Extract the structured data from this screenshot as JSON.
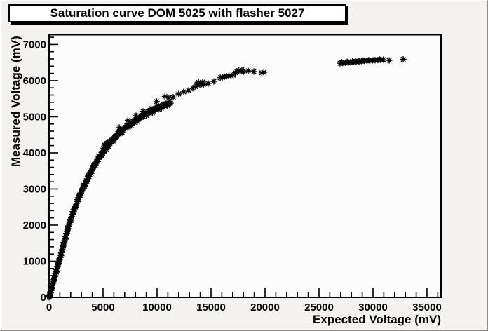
{
  "title_pave": {
    "text": "Saturation curve DOM 5025 with flasher 5027"
  },
  "colors": {
    "canvas_bg": "#f3f2f1",
    "plot_bg": "#fdfcfc",
    "frame": "#000000",
    "marker": "#000000",
    "text": "#000000"
  },
  "chart_data": {
    "type": "scatter",
    "title": "Saturation curve DOM 5025 with flasher 5027",
    "xlabel": "Expected Voltage (mV)",
    "ylabel": "Measured Voltage (mV)",
    "xlim": [
      0,
      36300
    ],
    "ylim": [
      0,
      7270
    ],
    "x_major_ticks": [
      0,
      5000,
      10000,
      15000,
      20000,
      25000,
      30000,
      35000
    ],
    "y_major_ticks": [
      0,
      1000,
      2000,
      3000,
      4000,
      5000,
      6000,
      7000
    ],
    "x_minor_step": 1000,
    "y_minor_step": 200,
    "grid": false,
    "legend": null,
    "marker": "asterisk",
    "points": [
      [
        5,
        6
      ],
      [
        15,
        18
      ],
      [
        30,
        33
      ],
      [
        45,
        55
      ],
      [
        60,
        70
      ],
      [
        90,
        148
      ],
      [
        120,
        140
      ],
      [
        150,
        124
      ],
      [
        180,
        196
      ],
      [
        210,
        254
      ],
      [
        240,
        262
      ],
      [
        270,
        239
      ],
      [
        300,
        327
      ],
      [
        330,
        400
      ],
      [
        360,
        392
      ],
      [
        390,
        400
      ],
      [
        420,
        458
      ],
      [
        450,
        491
      ],
      [
        480,
        523
      ],
      [
        510,
        606
      ],
      [
        540,
        588
      ],
      [
        570,
        581
      ],
      [
        600,
        654
      ],
      [
        630,
        712
      ],
      [
        660,
        719
      ],
      [
        690,
        697
      ],
      [
        720,
        785
      ],
      [
        750,
        858
      ],
      [
        780,
        850
      ],
      [
        810,
        858
      ],
      [
        840,
        915
      ],
      [
        870,
        948
      ],
      [
        900,
        981
      ],
      [
        930,
        1064
      ],
      [
        960,
        1046
      ],
      [
        990,
        1039
      ],
      [
        1020,
        1112
      ],
      [
        1050,
        1170
      ],
      [
        1080,
        1177
      ],
      [
        1110,
        1155
      ],
      [
        1140,
        1243
      ],
      [
        1170,
        1315
      ],
      [
        1200,
        1308
      ],
      [
        1230,
        1316
      ],
      [
        1260,
        1373
      ],
      [
        1290,
        1406
      ],
      [
        1320,
        1439
      ],
      [
        1350,
        1522
      ],
      [
        1380,
        1504
      ],
      [
        1410,
        1497
      ],
      [
        1440,
        1570
      ],
      [
        1470,
        1627
      ],
      [
        1500,
        1635
      ],
      [
        1530,
        1613
      ],
      [
        1560,
        1700
      ],
      [
        1590,
        1773
      ],
      [
        1620,
        1766
      ],
      [
        1650,
        1774
      ],
      [
        1680,
        1831
      ],
      [
        1710,
        1864
      ],
      [
        1740,
        1897
      ],
      [
        1770,
        1979
      ],
      [
        1800,
        1962
      ],
      [
        1830,
        1955
      ],
      [
        1860,
        2027
      ],
      [
        1890,
        2085
      ],
      [
        1920,
        2093
      ],
      [
        1950,
        2071
      ],
      [
        1980,
        2158
      ],
      [
        2040,
        2170
      ],
      [
        2100,
        2240
      ],
      [
        2200,
        2375
      ],
      [
        2300,
        2365
      ],
      [
        2400,
        2510
      ],
      [
        2500,
        2540
      ],
      [
        2600,
        2705
      ],
      [
        2700,
        2700
      ],
      [
        2800,
        2825
      ],
      [
        2900,
        2810
      ],
      [
        3000,
        2940
      ],
      [
        3100,
        3000
      ],
      [
        3200,
        3105
      ],
      [
        3300,
        3075
      ],
      [
        3400,
        3200
      ],
      [
        3500,
        3210
      ],
      [
        3600,
        3355
      ],
      [
        3700,
        3340
      ],
      [
        3800,
        3455
      ],
      [
        3900,
        3430
      ],
      [
        4000,
        3550
      ],
      [
        4100,
        3590
      ],
      [
        4200,
        3685
      ],
      [
        4300,
        3645
      ],
      [
        4400,
        3760
      ],
      [
        4500,
        3760
      ],
      [
        4600,
        3895
      ],
      [
        4700,
        3870
      ],
      [
        4800,
        3965
      ],
      [
        4900,
        3920
      ],
      [
        5000,
        4020
      ],
      [
        5100,
        4050
      ],
      [
        5200,
        4135
      ],
      [
        5300,
        4085
      ],
      [
        5400,
        4190
      ],
      [
        5500,
        4180
      ],
      [
        2150,
        2300
      ],
      [
        2250,
        2420
      ],
      [
        2350,
        2450
      ],
      [
        2450,
        2500
      ],
      [
        2550,
        2610
      ],
      [
        2650,
        2660
      ],
      [
        2750,
        2760
      ],
      [
        2850,
        2840
      ],
      [
        2950,
        2880
      ],
      [
        3050,
        2970
      ],
      [
        3150,
        3060
      ],
      [
        3250,
        3080
      ],
      [
        3350,
        3150
      ],
      [
        3450,
        3230
      ],
      [
        3550,
        3280
      ],
      [
        3650,
        3370
      ],
      [
        3750,
        3390
      ],
      [
        3850,
        3470
      ],
      [
        3950,
        3500
      ],
      [
        4050,
        3580
      ],
      [
        4150,
        3650
      ],
      [
        4250,
        3670
      ],
      [
        4350,
        3730
      ],
      [
        4450,
        3780
      ],
      [
        4550,
        3820
      ],
      [
        4650,
        3880
      ],
      [
        4750,
        3900
      ],
      [
        4850,
        3960
      ],
      [
        4950,
        3990
      ],
      [
        5050,
        4060
      ],
      [
        5150,
        4080
      ],
      [
        5250,
        4140
      ],
      [
        5350,
        4150
      ],
      [
        5450,
        4220
      ],
      [
        5050,
        4130
      ],
      [
        5150,
        4210
      ],
      [
        5250,
        4240
      ],
      [
        5350,
        4260
      ],
      [
        5450,
        4300
      ],
      [
        5550,
        4280
      ],
      [
        5650,
        4260
      ],
      [
        5790,
        4350
      ],
      [
        5930,
        4325
      ],
      [
        6070,
        4430
      ],
      [
        6210,
        4405
      ],
      [
        6350,
        4540
      ],
      [
        6490,
        4515
      ],
      [
        6630,
        4600
      ],
      [
        6770,
        4560
      ],
      [
        6910,
        4660
      ],
      [
        7050,
        4680
      ],
      [
        7190,
        4750
      ],
      [
        7330,
        4705
      ],
      [
        7470,
        4790
      ],
      [
        7610,
        4755
      ],
      [
        7750,
        4880
      ],
      [
        7890,
        4845
      ],
      [
        8030,
        4920
      ],
      [
        8170,
        4870
      ],
      [
        8310,
        4960
      ],
      [
        8450,
        4980
      ],
      [
        8590,
        5050
      ],
      [
        8730,
        5005
      ],
      [
        8870,
        5080
      ],
      [
        9010,
        5035
      ],
      [
        9150,
        5150
      ],
      [
        9290,
        5105
      ],
      [
        9430,
        5170
      ],
      [
        9570,
        5110
      ],
      [
        9710,
        5190
      ],
      [
        9850,
        5200
      ],
      [
        9990,
        5260
      ],
      [
        10130,
        5205
      ],
      [
        10270,
        5280
      ],
      [
        10410,
        5235
      ],
      [
        10550,
        5340
      ],
      [
        10690,
        5300
      ],
      [
        10830,
        5360
      ],
      [
        10970,
        5310
      ],
      [
        11110,
        5370
      ],
      [
        11250,
        5375
      ],
      [
        5720,
        4300
      ],
      [
        5860,
        4380
      ],
      [
        6000,
        4390
      ],
      [
        6140,
        4460
      ],
      [
        6280,
        4470
      ],
      [
        6420,
        4550
      ],
      [
        6560,
        4560
      ],
      [
        6700,
        4630
      ],
      [
        6840,
        4620
      ],
      [
        6980,
        4690
      ],
      [
        7120,
        4710
      ],
      [
        7260,
        4760
      ],
      [
        7400,
        4760
      ],
      [
        7540,
        4820
      ],
      [
        7680,
        4810
      ],
      [
        7820,
        4870
      ],
      [
        7960,
        4880
      ],
      [
        8100,
        4930
      ],
      [
        8240,
        4920
      ],
      [
        8380,
        4970
      ],
      [
        8520,
        5010
      ],
      [
        8660,
        5030
      ],
      [
        8800,
        5050
      ],
      [
        8940,
        5090
      ],
      [
        9080,
        5080
      ],
      [
        9220,
        5130
      ],
      [
        9360,
        5140
      ],
      [
        9500,
        5170
      ],
      [
        9640,
        5160
      ],
      [
        9780,
        5210
      ],
      [
        9920,
        5230
      ],
      [
        10060,
        5250
      ],
      [
        10200,
        5270
      ],
      [
        10340,
        5290
      ],
      [
        10480,
        5300
      ],
      [
        10620,
        5330
      ],
      [
        10760,
        5330
      ],
      [
        10900,
        5360
      ],
      [
        11040,
        5350
      ],
      [
        11180,
        5380
      ],
      [
        6500,
        4700
      ],
      [
        7300,
        4900
      ],
      [
        8050,
        5030
      ],
      [
        8700,
        5150
      ],
      [
        9450,
        5230
      ],
      [
        9960,
        5420
      ],
      [
        10730,
        5560
      ],
      [
        11100,
        5520
      ],
      [
        11500,
        5540
      ],
      [
        12010,
        5630
      ],
      [
        12470,
        5690
      ],
      [
        12920,
        5730
      ],
      [
        13310,
        5790
      ],
      [
        13570,
        5830
      ],
      [
        13700,
        5900
      ],
      [
        13840,
        5950
      ],
      [
        13960,
        5880
      ],
      [
        14080,
        5920
      ],
      [
        14220,
        5960
      ],
      [
        14290,
        5890
      ],
      [
        14740,
        5920
      ],
      [
        15260,
        5980
      ],
      [
        15850,
        6080
      ],
      [
        16050,
        6090
      ],
      [
        16250,
        6110
      ],
      [
        16450,
        6120
      ],
      [
        16650,
        6130
      ],
      [
        16850,
        6140
      ],
      [
        17050,
        6150
      ],
      [
        17250,
        6220
      ],
      [
        17400,
        6250
      ],
      [
        17550,
        6280
      ],
      [
        17700,
        6260
      ],
      [
        17850,
        6300
      ],
      [
        17990,
        6240
      ],
      [
        18440,
        6270
      ],
      [
        18960,
        6250
      ],
      [
        19700,
        6215
      ],
      [
        19900,
        6230
      ],
      [
        26950,
        6480
      ],
      [
        27100,
        6510
      ],
      [
        27200,
        6490
      ],
      [
        27450,
        6495
      ],
      [
        27600,
        6520
      ],
      [
        27700,
        6500
      ],
      [
        27950,
        6505
      ],
      [
        28100,
        6535
      ],
      [
        28200,
        6515
      ],
      [
        28450,
        6520
      ],
      [
        28600,
        6545
      ],
      [
        28700,
        6530
      ],
      [
        28950,
        6540
      ],
      [
        29100,
        6555
      ],
      [
        29200,
        6545
      ],
      [
        29450,
        6550
      ],
      [
        29600,
        6565
      ],
      [
        29700,
        6555
      ],
      [
        29950,
        6560
      ],
      [
        30100,
        6575
      ],
      [
        30200,
        6565
      ],
      [
        30450,
        6570
      ],
      [
        30600,
        6585
      ],
      [
        30700,
        6575
      ],
      [
        30950,
        6580
      ],
      [
        31500,
        6560
      ],
      [
        32800,
        6590
      ]
    ]
  }
}
